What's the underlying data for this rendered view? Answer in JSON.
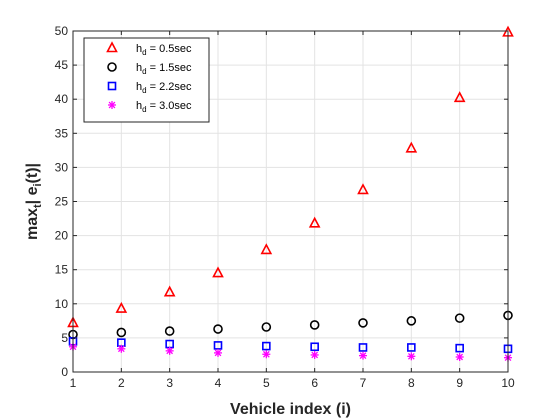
{
  "chart_data": {
    "type": "scatter",
    "title": "",
    "xlabel": "Vehicle index (i)",
    "ylabel": {
      "prefix": "max",
      "sub1": "t",
      "middle": "| e",
      "sub2": "i",
      "suffix": "(t)|"
    },
    "xlim": [
      1,
      10
    ],
    "ylim": [
      0,
      50
    ],
    "xticks": [
      1,
      2,
      3,
      4,
      5,
      6,
      7,
      8,
      9,
      10
    ],
    "yticks": [
      0,
      5,
      10,
      15,
      20,
      25,
      30,
      35,
      40,
      45,
      50
    ],
    "grid": true,
    "legend_position": "top-left",
    "x": [
      1,
      2,
      3,
      4,
      5,
      6,
      7,
      8,
      9,
      10
    ],
    "series": [
      {
        "name": "h_d = 0.5sec",
        "label": {
          "base": "h",
          "sub": "d",
          "rest": " = 0.5sec"
        },
        "marker": "triangle",
        "color": "#ff0000",
        "values": [
          7.2,
          9.3,
          11.7,
          14.5,
          17.9,
          21.8,
          26.7,
          32.8,
          40.2,
          49.8
        ]
      },
      {
        "name": "h_d = 1.5sec",
        "label": {
          "base": "h",
          "sub": "d",
          "rest": " = 1.5sec"
        },
        "marker": "circle",
        "color": "#000000",
        "values": [
          5.5,
          5.8,
          6.0,
          6.3,
          6.6,
          6.9,
          7.2,
          7.5,
          7.9,
          8.3
        ]
      },
      {
        "name": "h_d = 2.2sec",
        "label": {
          "base": "h",
          "sub": "d",
          "rest": " = 2.2sec"
        },
        "marker": "square",
        "color": "#0000ff",
        "values": [
          4.5,
          4.3,
          4.1,
          3.9,
          3.8,
          3.7,
          3.6,
          3.6,
          3.5,
          3.4
        ]
      },
      {
        "name": "h_d = 3.0sec",
        "label": {
          "base": "h",
          "sub": "d",
          "rest": " = 3.0sec"
        },
        "marker": "asterisk",
        "color": "#ff00ff",
        "values": [
          3.7,
          3.4,
          3.1,
          2.8,
          2.6,
          2.5,
          2.4,
          2.3,
          2.2,
          2.1
        ]
      }
    ]
  }
}
